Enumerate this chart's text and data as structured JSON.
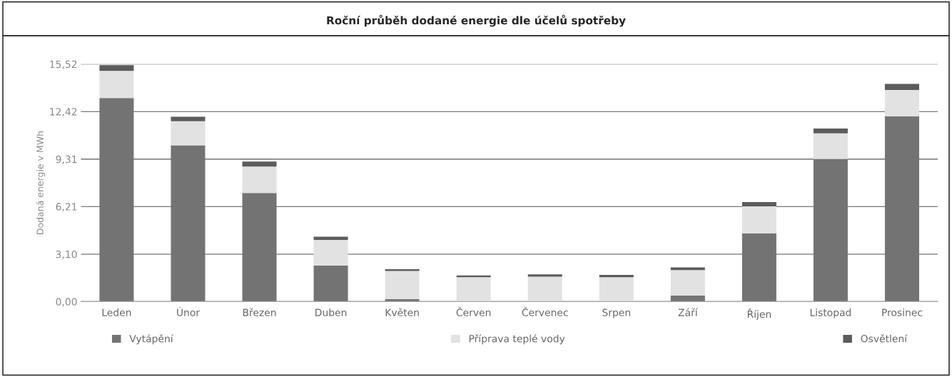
{
  "chart_data": {
    "type": "bar",
    "stacked": true,
    "title": "Roční průběh dodané energie dle účelů spotřeby",
    "ylabel": "Dodaná energie v MWh",
    "categories": [
      "Leden",
      "Únor",
      "Březen",
      "Duben",
      "Květen",
      "Červen",
      "Červenec",
      "Srpen",
      "Září",
      "Říjen",
      "Listopad",
      "Prosinec"
    ],
    "series": [
      {
        "name": "Vytápění",
        "color": "#737373",
        "values": [
          13.31,
          10.21,
          7.1,
          2.36,
          0.16,
          0,
          0,
          0,
          0.39,
          4.46,
          9.31,
          12.1
        ]
      },
      {
        "name": "Příprava teplé vody",
        "color": "#e2e2e2",
        "values": [
          1.77,
          1.58,
          1.72,
          1.67,
          1.84,
          1.59,
          1.63,
          1.59,
          1.67,
          1.76,
          1.69,
          1.73
        ]
      },
      {
        "name": "Osvětlení",
        "color": "#5c5c5c",
        "values": [
          0.37,
          0.29,
          0.33,
          0.21,
          0.12,
          0.12,
          0.15,
          0.16,
          0.18,
          0.28,
          0.31,
          0.4
        ]
      }
    ],
    "ylim": [
      0,
      15.52
    ],
    "yticks": [
      {
        "value": 0,
        "label": "0,00"
      },
      {
        "value": 3.1,
        "label": "3,10"
      },
      {
        "value": 6.21,
        "label": "6,21"
      },
      {
        "value": 9.31,
        "label": "9,31"
      },
      {
        "value": 12.42,
        "label": "12,42"
      },
      {
        "value": 15.52,
        "label": "15,52"
      }
    ],
    "grid": "y",
    "legend": "bottom"
  }
}
